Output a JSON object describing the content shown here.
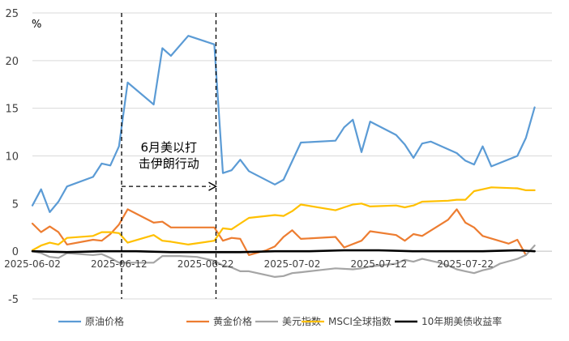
{
  "chart_data": {
    "type": "line",
    "unit_label": "%",
    "ylim": [
      -5,
      25
    ],
    "yticks": [
      25,
      20,
      15,
      10,
      5,
      0,
      -5
    ],
    "xlim": [
      0,
      60
    ],
    "x_tick_labels": [
      {
        "x": 0,
        "label": "2025-06-02"
      },
      {
        "x": 10,
        "label": "2025-06-12"
      },
      {
        "x": 20,
        "label": "2025-06-22"
      },
      {
        "x": 30,
        "label": "2025-07-02"
      },
      {
        "x": 40,
        "label": "2025-07-12"
      },
      {
        "x": 50,
        "label": "2025-07-22"
      }
    ],
    "annotation": {
      "lines": [
        "6月美以打",
        "击伊朗行动"
      ],
      "start_x": 10.3,
      "end_x": 21.2,
      "arrow_y": 6.8
    },
    "series": [
      {
        "name": "原油价格",
        "color": "#5b9bd5",
        "points": [
          [
            0,
            4.8
          ],
          [
            1,
            6.5
          ],
          [
            2,
            4.1
          ],
          [
            3,
            5.2
          ],
          [
            4,
            6.8
          ],
          [
            7,
            7.8
          ],
          [
            8,
            9.2
          ],
          [
            9,
            9.0
          ],
          [
            10,
            11.0
          ],
          [
            11,
            17.7
          ],
          [
            14,
            15.4
          ],
          [
            15,
            21.3
          ],
          [
            16,
            20.5
          ],
          [
            18,
            22.6
          ],
          [
            21,
            21.7
          ],
          [
            22,
            8.2
          ],
          [
            23,
            8.5
          ],
          [
            24,
            9.6
          ],
          [
            25,
            8.4
          ],
          [
            28,
            7.0
          ],
          [
            29,
            7.5
          ],
          [
            31,
            11.4
          ],
          [
            35,
            11.6
          ],
          [
            36,
            13.0
          ],
          [
            37,
            13.8
          ],
          [
            38,
            10.4
          ],
          [
            39,
            13.6
          ],
          [
            42,
            12.2
          ],
          [
            43,
            11.2
          ],
          [
            44,
            9.8
          ],
          [
            45,
            11.3
          ],
          [
            46,
            11.5
          ],
          [
            49,
            10.3
          ],
          [
            50,
            9.5
          ],
          [
            51,
            9.1
          ],
          [
            52,
            11.0
          ],
          [
            53,
            8.9
          ],
          [
            56,
            10.0
          ],
          [
            57,
            11.9
          ],
          [
            58,
            15.1
          ]
        ]
      },
      {
        "name": "黄金价格",
        "color": "#ed7d31",
        "points": [
          [
            0,
            2.9
          ],
          [
            1,
            2.0
          ],
          [
            2,
            2.6
          ],
          [
            3,
            2.0
          ],
          [
            4,
            0.7
          ],
          [
            7,
            1.2
          ],
          [
            8,
            1.1
          ],
          [
            9,
            1.8
          ],
          [
            10,
            2.8
          ],
          [
            11,
            4.4
          ],
          [
            14,
            3.0
          ],
          [
            15,
            3.1
          ],
          [
            16,
            2.5
          ],
          [
            18,
            2.5
          ],
          [
            21,
            2.5
          ],
          [
            22,
            1.1
          ],
          [
            23,
            1.4
          ],
          [
            24,
            1.3
          ],
          [
            25,
            -0.4
          ],
          [
            27,
            0.1
          ],
          [
            28,
            0.5
          ],
          [
            29,
            1.5
          ],
          [
            30,
            2.2
          ],
          [
            31,
            1.3
          ],
          [
            35,
            1.5
          ],
          [
            36,
            0.4
          ],
          [
            38,
            1.1
          ],
          [
            39,
            2.1
          ],
          [
            42,
            1.7
          ],
          [
            43,
            1.1
          ],
          [
            44,
            1.8
          ],
          [
            45,
            1.6
          ],
          [
            48,
            3.3
          ],
          [
            49,
            4.4
          ],
          [
            50,
            3.0
          ],
          [
            51,
            2.5
          ],
          [
            52,
            1.6
          ],
          [
            55,
            0.8
          ],
          [
            56,
            1.2
          ],
          [
            57,
            -0.4
          ]
        ]
      },
      {
        "name": "美元指数",
        "color": "#a5a5a5",
        "points": [
          [
            0,
            0.0
          ],
          [
            1,
            -0.2
          ],
          [
            2,
            -0.6
          ],
          [
            3,
            -0.7
          ],
          [
            4,
            -0.2
          ],
          [
            7,
            -0.4
          ],
          [
            8,
            -0.3
          ],
          [
            9,
            -0.7
          ],
          [
            10,
            -1.2
          ],
          [
            11,
            -1.2
          ],
          [
            14,
            -1.2
          ],
          [
            15,
            -0.5
          ],
          [
            17,
            -0.5
          ],
          [
            19,
            -0.6
          ],
          [
            21,
            -1.0
          ],
          [
            22,
            -1.5
          ],
          [
            23,
            -1.7
          ],
          [
            24,
            -2.1
          ],
          [
            25,
            -2.1
          ],
          [
            27,
            -2.5
          ],
          [
            28,
            -2.7
          ],
          [
            29,
            -2.6
          ],
          [
            30,
            -2.3
          ],
          [
            31,
            -2.2
          ],
          [
            33,
            -2.0
          ],
          [
            35,
            -1.8
          ],
          [
            37,
            -1.9
          ],
          [
            38,
            -1.8
          ],
          [
            39,
            -1.6
          ],
          [
            42,
            -1.3
          ],
          [
            43,
            -0.9
          ],
          [
            44,
            -1.1
          ],
          [
            45,
            -0.8
          ],
          [
            47,
            -1.2
          ],
          [
            48,
            -1.5
          ],
          [
            49,
            -1.9
          ],
          [
            50,
            -2.1
          ],
          [
            51,
            -2.3
          ],
          [
            52,
            -2.0
          ],
          [
            53,
            -1.8
          ],
          [
            54,
            -1.3
          ],
          [
            56,
            -0.8
          ],
          [
            57,
            -0.4
          ],
          [
            58,
            0.6
          ]
        ]
      },
      {
        "name": "MSCI全球指数",
        "color": "#ffc000",
        "points": [
          [
            0,
            0.1
          ],
          [
            1,
            0.6
          ],
          [
            2,
            0.9
          ],
          [
            3,
            0.7
          ],
          [
            4,
            1.4
          ],
          [
            7,
            1.6
          ],
          [
            8,
            2.0
          ],
          [
            9,
            2.0
          ],
          [
            10,
            1.9
          ],
          [
            11,
            0.9
          ],
          [
            14,
            1.7
          ],
          [
            15,
            1.1
          ],
          [
            16,
            1.0
          ],
          [
            18,
            0.7
          ],
          [
            21,
            1.1
          ],
          [
            22,
            2.4
          ],
          [
            23,
            2.3
          ],
          [
            24,
            2.9
          ],
          [
            25,
            3.5
          ],
          [
            28,
            3.8
          ],
          [
            29,
            3.7
          ],
          [
            30,
            4.2
          ],
          [
            31,
            4.9
          ],
          [
            35,
            4.3
          ],
          [
            36,
            4.6
          ],
          [
            37,
            4.9
          ],
          [
            38,
            5.0
          ],
          [
            39,
            4.7
          ],
          [
            42,
            4.8
          ],
          [
            43,
            4.6
          ],
          [
            44,
            4.8
          ],
          [
            45,
            5.2
          ],
          [
            48,
            5.3
          ],
          [
            49,
            5.4
          ],
          [
            50,
            5.4
          ],
          [
            51,
            6.3
          ],
          [
            52,
            6.5
          ],
          [
            53,
            6.7
          ],
          [
            56,
            6.6
          ],
          [
            57,
            6.4
          ],
          [
            58,
            6.4
          ]
        ]
      },
      {
        "name": "10年期美债收益率",
        "color": "#000000",
        "points": [
          [
            0,
            0.0
          ],
          [
            4,
            -0.1
          ],
          [
            8,
            0.0
          ],
          [
            12,
            0.0
          ],
          [
            16,
            -0.1
          ],
          [
            20,
            -0.1
          ],
          [
            24,
            -0.1
          ],
          [
            28,
            0.0
          ],
          [
            32,
            0.0
          ],
          [
            36,
            0.1
          ],
          [
            40,
            0.1
          ],
          [
            44,
            0.0
          ],
          [
            48,
            0.0
          ],
          [
            52,
            0.0
          ],
          [
            56,
            0.1
          ],
          [
            58,
            0.0
          ]
        ]
      }
    ]
  }
}
